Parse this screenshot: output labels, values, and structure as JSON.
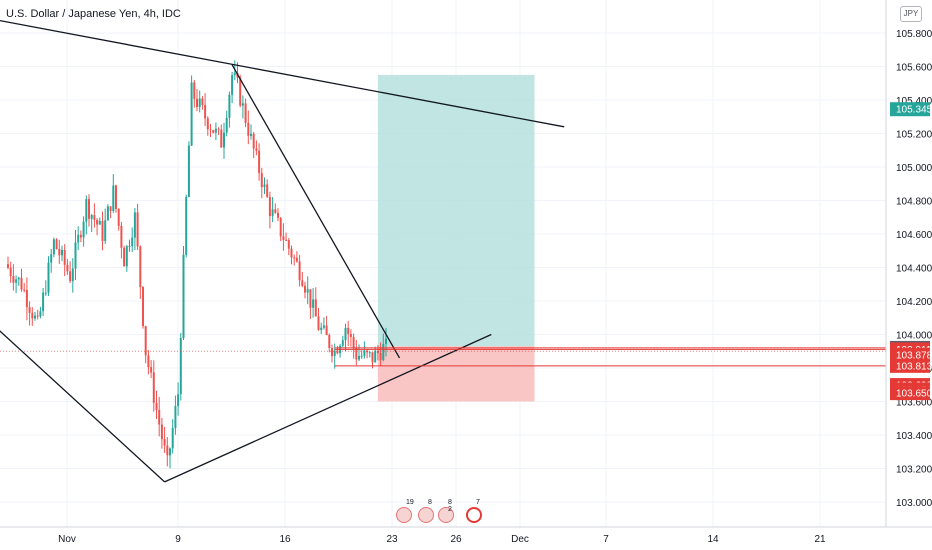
{
  "header": {
    "title": "U.S. Dollar / Japanese Yen, 4h, IDC",
    "currency_badge": "JPY"
  },
  "colors": {
    "up": "#26a69a",
    "down": "#ef5350",
    "trendline": "#131722",
    "target_zone": "#b2dfdb",
    "stop_zone": "#f8bbbb",
    "level_line": "#e53935",
    "price_badge_current": "#26a69a",
    "price_badge_levels": "#e53935",
    "price_badge_last": "#5d606b"
  },
  "events": [
    {
      "count": "19",
      "icon": "calendar-event-icon"
    },
    {
      "count": "8",
      "icon": "calendar-event-icon"
    },
    {
      "count": "8 2",
      "icon": "calendar-event-icon"
    },
    {
      "count": "7",
      "icon": "calendar-event-icon"
    }
  ],
  "chart_data": {
    "type": "candlestick",
    "title": "U.S. Dollar / Japanese Yen, 4h, IDC",
    "xlabel": "",
    "ylabel": "",
    "ylim": [
      102.9,
      105.95
    ],
    "grid": true,
    "x_tick_labels": [
      "Nov",
      "9",
      "16",
      "23",
      "26",
      "Dec",
      "7",
      "14",
      "21"
    ],
    "y_tick_labels": [
      "105.800",
      "105.600",
      "105.400",
      "105.200",
      "105.000",
      "104.800",
      "104.600",
      "104.400",
      "104.200",
      "104.000",
      "103.800",
      "103.600",
      "103.400",
      "103.200",
      "103.000"
    ],
    "price_badges": [
      {
        "label": "105.345",
        "value": 105.345,
        "kind": "current"
      },
      {
        "label": "103.920",
        "value": 103.92,
        "kind": "last"
      },
      {
        "label": "103.911",
        "value": 103.911,
        "kind": "level"
      },
      {
        "label": "103.878",
        "value": 103.878,
        "kind": "level"
      },
      {
        "label": "103.813",
        "value": 103.813,
        "kind": "level"
      },
      {
        "label": "103.698",
        "value": 103.698,
        "kind": "level"
      },
      {
        "label": "103.672",
        "value": 103.672,
        "kind": "level"
      },
      {
        "label": "103.650",
        "value": 103.65,
        "kind": "level"
      }
    ],
    "trend_path": [
      {
        "t": 0,
        "v": 104.42
      },
      {
        "t": 6,
        "v": 104.3
      },
      {
        "t": 12,
        "v": 104.05
      },
      {
        "t": 18,
        "v": 104.55
      },
      {
        "t": 24,
        "v": 104.35
      },
      {
        "t": 30,
        "v": 104.78
      },
      {
        "t": 36,
        "v": 104.6
      },
      {
        "t": 40,
        "v": 104.85
      },
      {
        "t": 44,
        "v": 104.45
      },
      {
        "t": 48,
        "v": 104.7
      },
      {
        "t": 52,
        "v": 103.9
      },
      {
        "t": 56,
        "v": 103.55
      },
      {
        "t": 60,
        "v": 103.22
      },
      {
        "t": 64,
        "v": 103.65
      },
      {
        "t": 67,
        "v": 104.8
      },
      {
        "t": 69,
        "v": 105.45
      },
      {
        "t": 74,
        "v": 105.3
      },
      {
        "t": 80,
        "v": 105.15
      },
      {
        "t": 84,
        "v": 105.55
      },
      {
        "t": 86,
        "v": 105.48
      },
      {
        "t": 92,
        "v": 105.1
      },
      {
        "t": 98,
        "v": 104.75
      },
      {
        "t": 104,
        "v": 104.55
      },
      {
        "t": 110,
        "v": 104.35
      },
      {
        "t": 116,
        "v": 104.05
      },
      {
        "t": 122,
        "v": 103.9
      },
      {
        "t": 126,
        "v": 104.05
      },
      {
        "t": 130,
        "v": 103.88
      },
      {
        "t": 136,
        "v": 103.86
      },
      {
        "t": 140,
        "v": 103.92
      }
    ],
    "trendlines": [
      {
        "name": "upper-resistance",
        "from": {
          "t": -5,
          "v": 105.88
        },
        "to": {
          "t": 206,
          "v": 105.24
        }
      },
      {
        "name": "lower-support-left",
        "from": {
          "t": -5,
          "v": 104.05
        },
        "to": {
          "t": 58,
          "v": 103.12
        }
      },
      {
        "name": "rising-support",
        "from": {
          "t": 58,
          "v": 103.12
        },
        "to": {
          "t": 179,
          "v": 104.0
        }
      },
      {
        "name": "falling-wedge-top",
        "from": {
          "t": 83,
          "v": 105.61
        },
        "to": {
          "t": 145,
          "v": 103.86
        }
      }
    ],
    "long_position": {
      "t_start": 137,
      "t_end": 195,
      "target": 105.55,
      "entry": 103.93,
      "stop": 103.6
    },
    "horizontal_levels": [
      103.92,
      103.911,
      103.813
    ],
    "horizontal_level_span": {
      "t_start": 121,
      "t_end": 222
    }
  }
}
